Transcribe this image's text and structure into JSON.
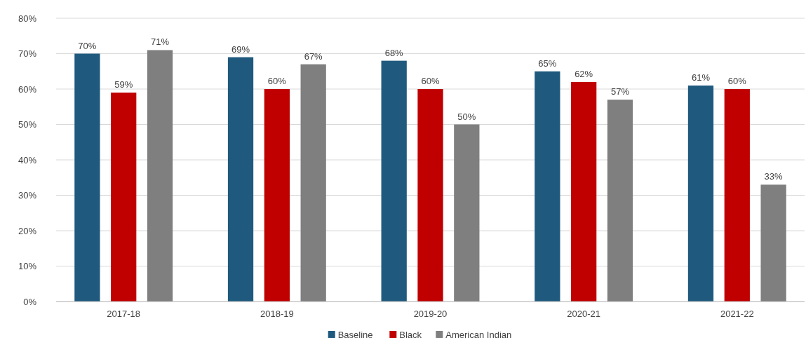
{
  "chart_data": {
    "type": "bar",
    "categories": [
      "2017-18",
      "2018-19",
      "2019-20",
      "2020-21",
      "2021-22"
    ],
    "series": [
      {
        "name": "Baseline",
        "color": "#1f5a7e",
        "values": [
          70,
          69,
          68,
          65,
          61
        ],
        "value_labels": [
          "70%",
          "69%",
          "68%",
          "65%",
          "61%"
        ]
      },
      {
        "name": "Black",
        "color": "#c00000",
        "values": [
          59,
          60,
          60,
          62,
          60
        ],
        "value_labels": [
          "59%",
          "60%",
          "60%",
          "62%",
          "60%"
        ]
      },
      {
        "name": "American Indian",
        "color": "#7f7f7f",
        "values": [
          71,
          67,
          50,
          57,
          33
        ],
        "value_labels": [
          "71%",
          "67%",
          "50%",
          "57%",
          "33%"
        ]
      }
    ],
    "ylim": [
      0,
      80
    ],
    "yticks": [
      {
        "value": 0,
        "label": "0%"
      },
      {
        "value": 10,
        "label": "10%"
      },
      {
        "value": 20,
        "label": "20%"
      },
      {
        "value": 30,
        "label": "30%"
      },
      {
        "value": 40,
        "label": "40%"
      },
      {
        "value": 50,
        "label": "50%"
      },
      {
        "value": 60,
        "label": "60%"
      },
      {
        "value": 70,
        "label": "70%"
      },
      {
        "value": 80,
        "label": "80%"
      }
    ],
    "grid": "y",
    "legend": "bottom"
  }
}
